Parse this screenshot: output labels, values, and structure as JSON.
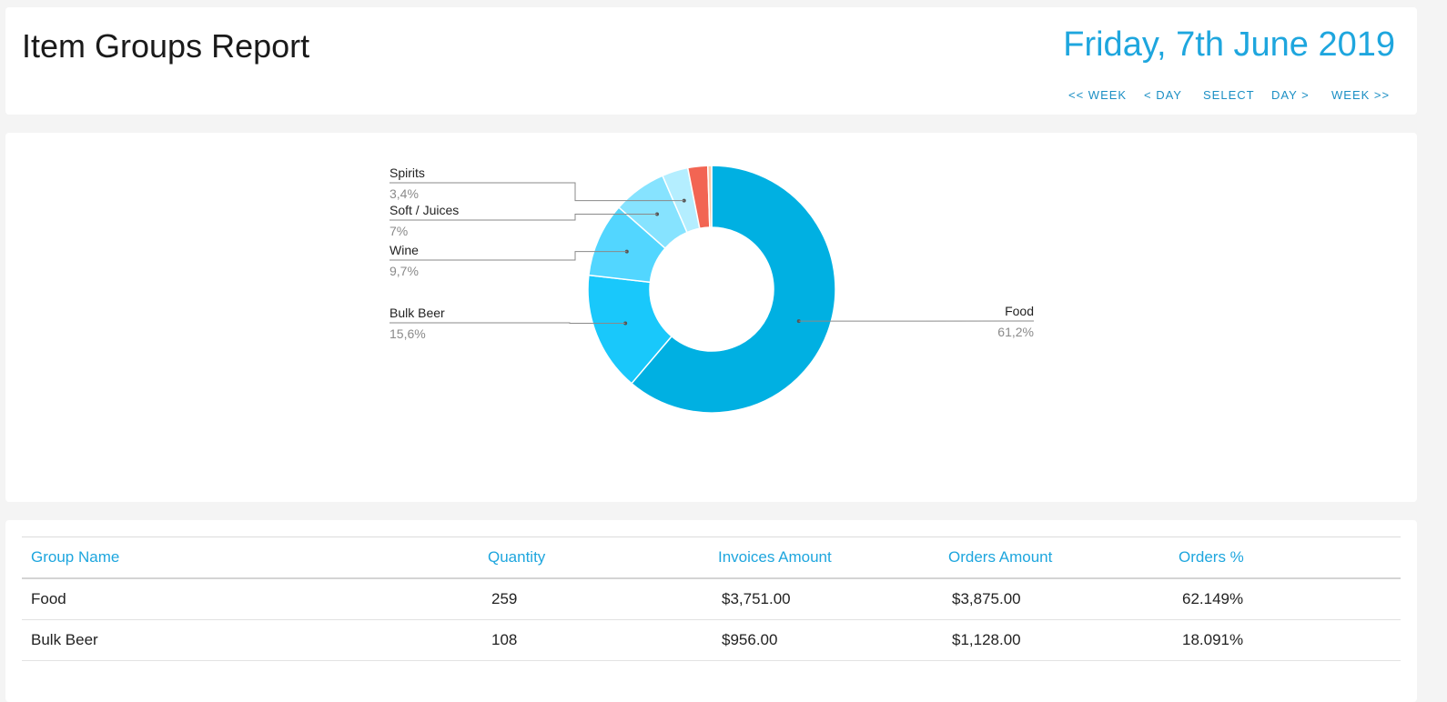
{
  "header": {
    "title": "Item Groups Report",
    "date": "Friday, 7th June 2019",
    "nav": {
      "prev_week": "<< WEEK",
      "prev_day": "< DAY",
      "select": "SELECT",
      "next_day": "DAY >",
      "next_week": "WEEK >>"
    }
  },
  "chart_data": {
    "type": "pie",
    "donut": true,
    "title": "",
    "slices": [
      {
        "label": "Food",
        "value": 61.2,
        "display": "61,2%",
        "color": "#00b0e2"
      },
      {
        "label": "Bulk Beer",
        "value": 15.6,
        "display": "15,6%",
        "color": "#19c8fb"
      },
      {
        "label": "Wine",
        "value": 9.7,
        "display": "9,7%",
        "color": "#52d6ff"
      },
      {
        "label": "Soft / Juices",
        "value": 7,
        "display": "7%",
        "color": "#86e3ff"
      },
      {
        "label": "Spirits",
        "value": 3.4,
        "display": "3,4%",
        "color": "#b4eeff"
      },
      {
        "label": "",
        "value": 2.6,
        "display": "",
        "color": "#f26553"
      },
      {
        "label": "",
        "value": 0.5,
        "display": "",
        "color": "#f7c9a8"
      }
    ]
  },
  "table": {
    "columns": [
      "Group Name",
      "Quantity",
      "Invoices Amount",
      "Orders Amount",
      "Orders %"
    ],
    "rows": [
      [
        "Food",
        "259",
        "$3,751.00",
        "$3,875.00",
        "62.149%"
      ],
      [
        "Bulk Beer",
        "108",
        "$956.00",
        "$1,128.00",
        "18.091%"
      ]
    ]
  }
}
